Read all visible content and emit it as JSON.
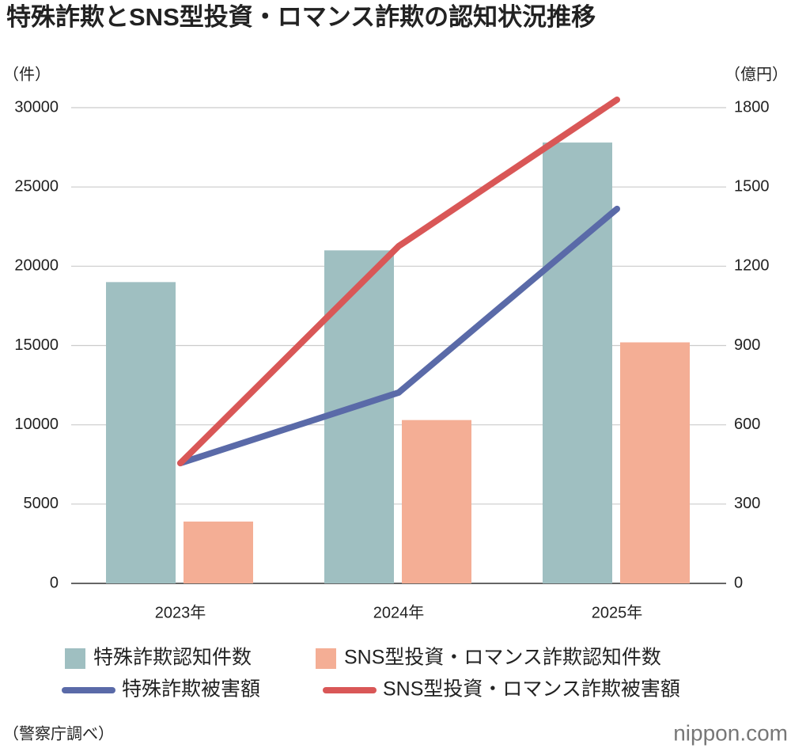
{
  "chart_data": {
    "type": "bar",
    "title": "特殊詐欺とSNS型投資・ロマンス詐欺の認知状況推移",
    "y_label": "（件）",
    "y2_label": "（億円）",
    "source": "（警察庁調べ）",
    "logo": "nippon.com",
    "categories": [
      "2023年",
      "2024年",
      "2025年"
    ],
    "series": [
      {
        "name": "特殊詐欺認知件数",
        "type": "bar",
        "color": "#9fbfc1",
        "values": [
          19000,
          21000,
          27800
        ]
      },
      {
        "name": "SNS型投資・ロマンス詐欺認知件数",
        "type": "bar",
        "color": "#f4ae95",
        "values": [
          3900,
          10300,
          15200
        ]
      },
      {
        "name": "特殊詐欺被害額",
        "type": "line",
        "axis": "y2",
        "color": "#5a6aa8",
        "values": [
          455,
          722,
          1417
        ]
      },
      {
        "name": "SNS型投資・ロマンス詐欺被害額",
        "type": "line",
        "axis": "y2",
        "color": "#d95757",
        "values": [
          455,
          1276,
          1830
        ]
      }
    ],
    "ylim": [
      0,
      30000
    ],
    "yticks": [
      0,
      5000,
      10000,
      15000,
      20000,
      25000,
      30000
    ],
    "y2lim": [
      0,
      1800
    ],
    "y2ticks": [
      0,
      300,
      600,
      900,
      1200,
      1500,
      1800
    ],
    "grid": true
  }
}
